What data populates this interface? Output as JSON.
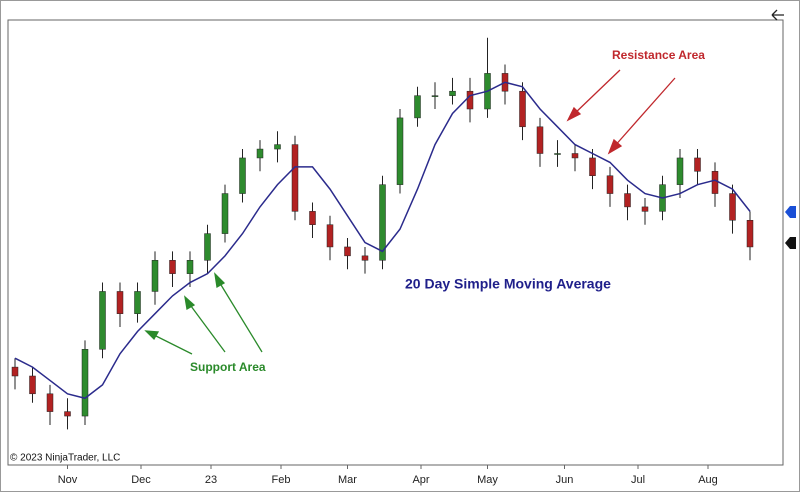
{
  "chart_data": {
    "type": "candlestick",
    "annotations": [
      "Resistance Area",
      "Support Area",
      "20 Day Simple Moving Average",
      "© 2023 NinjaTrader, LLC"
    ],
    "xlim": [
      0,
      220
    ],
    "ylim": [
      0,
      100
    ],
    "xticks": [
      {
        "value": 17,
        "label": "Nov"
      },
      {
        "value": 38,
        "label": "Dec"
      },
      {
        "value": 58,
        "label": "23"
      },
      {
        "value": 78,
        "label": "Feb"
      },
      {
        "value": 97,
        "label": "Mar"
      },
      {
        "value": 118,
        "label": "Apr"
      },
      {
        "value": 137,
        "label": "May"
      },
      {
        "value": 159,
        "label": "Jun"
      },
      {
        "value": 180,
        "label": "Jul"
      },
      {
        "value": 200,
        "label": "Aug"
      }
    ],
    "x": [
      2,
      7,
      12,
      17,
      22,
      27,
      32,
      37,
      42,
      47,
      52,
      57,
      62,
      67,
      72,
      77,
      82,
      87,
      92,
      97,
      102,
      107,
      112,
      117,
      122,
      127,
      132,
      137,
      142,
      147,
      152,
      157,
      162,
      167,
      172,
      177,
      182,
      187,
      192,
      197,
      202,
      207,
      212
    ],
    "open": [
      22,
      20,
      16,
      12,
      11,
      26,
      39,
      34,
      39,
      46,
      43,
      46,
      52,
      61,
      69,
      71,
      72,
      57,
      54,
      49,
      47,
      46,
      63,
      78,
      83,
      83,
      84,
      80,
      88,
      84,
      76,
      70,
      70,
      69,
      65,
      61,
      58,
      57,
      63,
      69,
      66,
      61,
      55
    ],
    "high": [
      24,
      22,
      18,
      15,
      28,
      41,
      41,
      41,
      48,
      48,
      48,
      54,
      63,
      71,
      73,
      75,
      74,
      59,
      56,
      51,
      49,
      65,
      80,
      85,
      86,
      87,
      87,
      96,
      90,
      86,
      78,
      73,
      72,
      71,
      67,
      63,
      60,
      65,
      71,
      71,
      68,
      63,
      57
    ],
    "low": [
      17,
      14,
      9,
      8,
      9,
      24,
      31,
      32,
      36,
      40,
      40,
      43,
      50,
      59,
      66,
      68,
      55,
      51,
      46,
      44,
      43,
      44,
      61,
      76,
      80,
      81,
      77,
      78,
      81,
      73,
      67,
      67,
      66,
      62,
      58,
      55,
      54,
      55,
      60,
      63,
      58,
      52,
      46
    ],
    "close": [
      20,
      16,
      12,
      11,
      26,
      39,
      34,
      39,
      46,
      43,
      46,
      52,
      61,
      69,
      71,
      72,
      57,
      54,
      49,
      47,
      46,
      63,
      78,
      83,
      83,
      84,
      80,
      88,
      84,
      76,
      70,
      70,
      69,
      65,
      61,
      58,
      57,
      63,
      69,
      66,
      61,
      55,
      49
    ],
    "up_color": "#2e8b2e",
    "down_color": "#b22222",
    "sma": {
      "color": "#2b2b8c",
      "values": [
        24,
        22,
        19,
        16,
        15,
        18,
        25,
        30,
        34,
        38,
        41,
        43,
        47,
        52,
        58,
        63,
        67,
        67,
        62,
        56,
        50,
        48,
        53,
        62,
        72,
        79,
        83,
        84,
        86,
        85,
        80,
        76,
        72,
        70,
        68,
        64,
        61,
        60,
        61,
        63,
        64,
        62,
        57
      ]
    }
  }
}
